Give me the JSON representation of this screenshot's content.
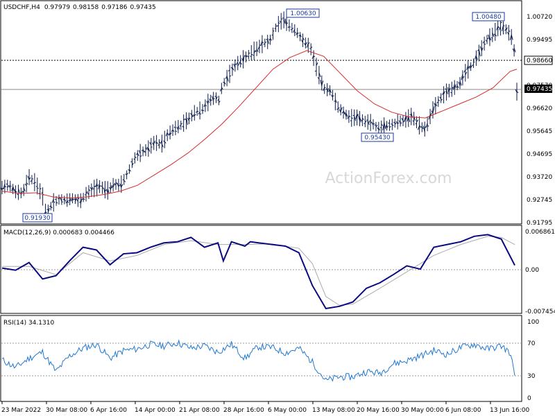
{
  "chart_data": [
    {
      "type": "line",
      "panel": "price",
      "title": "USDCHF,H4",
      "ohlc_header": {
        "open": "0.97979",
        "high": "0.98158",
        "low": "0.97186",
        "close": "0.97435"
      },
      "watermark": "ActionForex.com",
      "ylim": [
        0.91795,
        1.0072
      ],
      "y_ticks": [
        "1.00720",
        "0.99495",
        "0.98560",
        "0.97570",
        "0.96620",
        "0.95645",
        "0.94695",
        "0.93720",
        "0.92745",
        "0.91795"
      ],
      "x_ticks": [
        "23 Mar 2022",
        "30 Mar 08:00",
        "6 Apr 16:00",
        "14 Apr 00:00",
        "21 Apr 08:00",
        "28 Apr 16:00",
        "6 May 00:00",
        "13 May 08:00",
        "20 May 16:00",
        "30 May 00:00",
        "6 Jun 08:00",
        "13 Jun 16:00"
      ],
      "series": [
        {
          "name": "price",
          "color": "#0a1a4a",
          "points": [
            [
              0,
              0.933
            ],
            [
              2,
              0.9342
            ],
            [
              4,
              0.9312
            ],
            [
              6,
              0.9306
            ],
            [
              8,
              0.9375
            ],
            [
              10,
              0.9348
            ],
            [
              12,
              0.9292
            ],
            [
              13,
              0.9215
            ],
            [
              15,
              0.9265
            ],
            [
              17,
              0.928
            ],
            [
              19,
              0.9275
            ],
            [
              21,
              0.9285
            ],
            [
              23,
              0.927
            ],
            [
              25,
              0.9305
            ],
            [
              27,
              0.9325
            ],
            [
              29,
              0.9335
            ],
            [
              31,
              0.9315
            ],
            [
              33,
              0.9345
            ],
            [
              35,
              0.934
            ],
            [
              37,
              0.939
            ],
            [
              39,
              0.9455
            ],
            [
              41,
              0.9482
            ],
            [
              43,
              0.9495
            ],
            [
              45,
              0.9525
            ],
            [
              47,
              0.9515
            ],
            [
              49,
              0.956
            ],
            [
              51,
              0.9585
            ],
            [
              53,
              0.96
            ],
            [
              55,
              0.9625
            ],
            [
              57,
              0.9655
            ],
            [
              59,
              0.9665
            ],
            [
              61,
              0.97
            ],
            [
              63,
              0.972
            ],
            [
              64,
              0.9705
            ],
            [
              65,
              0.977
            ],
            [
              67,
              0.9815
            ],
            [
              69,
              0.986
            ],
            [
              71,
              0.988
            ],
            [
              73,
              0.9905
            ],
            [
              75,
              0.9925
            ],
            [
              77,
              0.995
            ],
            [
              79,
              0.996
            ],
            [
              81,
              1.0025
            ],
            [
              83,
              1.0055
            ],
            [
              85,
              1.0025
            ],
            [
              87,
              1.0
            ],
            [
              89,
              0.996
            ],
            [
              91,
              0.9935
            ],
            [
              93,
              0.984
            ],
            [
              95,
              0.9755
            ],
            [
              97,
              0.9748
            ],
            [
              99,
              0.968
            ],
            [
              101,
              0.965
            ],
            [
              103,
              0.963
            ],
            [
              105,
              0.9632
            ],
            [
              107,
              0.9615
            ],
            [
              109,
              0.961
            ],
            [
              111,
              0.9585
            ],
            [
              113,
              0.9595
            ],
            [
              115,
              0.96
            ],
            [
              117,
              0.9615
            ],
            [
              119,
              0.962
            ],
            [
              121,
              0.9638
            ],
            [
              123,
              0.96
            ],
            [
              125,
              0.958
            ],
            [
              127,
              0.966
            ],
            [
              129,
              0.9705
            ],
            [
              131,
              0.974
            ],
            [
              133,
              0.9755
            ],
            [
              135,
              0.9775
            ],
            [
              137,
              0.983
            ],
            [
              139,
              0.986
            ],
            [
              141,
              0.9915
            ],
            [
              143,
              0.9965
            ],
            [
              145,
              0.999
            ],
            [
              147,
              1.0025
            ],
            [
              149,
              1.001
            ],
            [
              151,
              0.9965
            ],
            [
              152,
              0.9743
            ]
          ]
        },
        {
          "name": "moving average",
          "color": "#d62b2b",
          "points": [
            [
              0,
              0.9315
            ],
            [
              5,
              0.9305
            ],
            [
              10,
              0.9308
            ],
            [
              15,
              0.929
            ],
            [
              20,
              0.9285
            ],
            [
              25,
              0.929
            ],
            [
              30,
              0.93
            ],
            [
              35,
              0.9315
            ],
            [
              40,
              0.934
            ],
            [
              45,
              0.9385
            ],
            [
              50,
              0.943
            ],
            [
              55,
              0.948
            ],
            [
              60,
              0.954
            ],
            [
              65,
              0.9605
            ],
            [
              70,
              0.968
            ],
            [
              75,
              0.976
            ],
            [
              80,
              0.984
            ],
            [
              85,
              0.989
            ],
            [
              90,
              0.992
            ],
            [
              95,
              0.9895
            ],
            [
              100,
              0.982
            ],
            [
              105,
              0.9745
            ],
            [
              110,
              0.969
            ],
            [
              115,
              0.9655
            ],
            [
              120,
              0.9635
            ],
            [
              125,
              0.963
            ],
            [
              130,
              0.966
            ],
            [
              135,
              0.969
            ],
            [
              140,
              0.972
            ],
            [
              145,
              0.976
            ],
            [
              150,
              0.983
            ],
            [
              152,
              0.984
            ]
          ]
        }
      ],
      "annotations": [
        "0.91930",
        "1.00630",
        "0.95430",
        "1.00480"
      ],
      "price_tags": [
        {
          "label": "0.98660",
          "value": 0.9866,
          "style": "dashed"
        },
        {
          "label": "0.97435",
          "value": 0.97435,
          "style": "solid"
        }
      ]
    },
    {
      "type": "line",
      "panel": "macd",
      "title": "MACD(12,26,9) 0.000683 0.004466",
      "ylim": [
        -0.007454,
        0.006861
      ],
      "y_ticks": [
        "0.006861",
        "0.00",
        "-0.007454"
      ],
      "series": [
        {
          "name": "MACD",
          "color": "#0a0a80",
          "points": [
            [
              0,
              0.0002
            ],
            [
              5,
              -0.0002
            ],
            [
              10,
              0.0012
            ],
            [
              15,
              -0.0018
            ],
            [
              20,
              -0.0012
            ],
            [
              25,
              0.0015
            ],
            [
              30,
              0.004
            ],
            [
              35,
              0.0035
            ],
            [
              40,
              0.0008
            ],
            [
              45,
              0.0028
            ],
            [
              50,
              0.003
            ],
            [
              55,
              0.004
            ],
            [
              60,
              0.0048
            ],
            [
              65,
              0.005
            ],
            [
              70,
              0.0058
            ],
            [
              75,
              0.004
            ],
            [
              80,
              0.0048
            ],
            [
              82,
              0.0015
            ],
            [
              85,
              0.005
            ],
            [
              90,
              0.0042
            ],
            [
              92,
              0.005
            ],
            [
              95,
              0.0048
            ],
            [
              100,
              0.0045
            ],
            [
              105,
              0.0042
            ],
            [
              110,
              0.003
            ],
            [
              115,
              -0.003
            ],
            [
              120,
              -0.0072
            ],
            [
              125,
              -0.0068
            ],
            [
              130,
              -0.006
            ],
            [
              135,
              -0.0035
            ],
            [
              140,
              -0.0025
            ],
            [
              145,
              -0.001
            ],
            [
              150,
              0.0006
            ],
            [
              155,
              0.0
            ],
            [
              160,
              0.004
            ],
            [
              165,
              0.0045
            ],
            [
              170,
              0.005
            ],
            [
              175,
              0.006
            ],
            [
              180,
              0.0063
            ],
            [
              185,
              0.0055
            ],
            [
              190,
              0.0007
            ]
          ]
        },
        {
          "name": "signal",
          "color": "#aaaaaa",
          "points": [
            [
              0,
              0.0005
            ],
            [
              10,
              0.0005
            ],
            [
              20,
              -0.001
            ],
            [
              30,
              0.003
            ],
            [
              40,
              0.0015
            ],
            [
              50,
              0.0025
            ],
            [
              60,
              0.0045
            ],
            [
              70,
              0.0052
            ],
            [
              80,
              0.0045
            ],
            [
              90,
              0.0045
            ],
            [
              100,
              0.0046
            ],
            [
              110,
              0.0038
            ],
            [
              115,
              0.001
            ],
            [
              120,
              -0.005
            ],
            [
              125,
              -0.0066
            ],
            [
              130,
              -0.0064
            ],
            [
              140,
              -0.0035
            ],
            [
              150,
              -0.0005
            ],
            [
              160,
              0.0025
            ],
            [
              170,
              0.0045
            ],
            [
              180,
              0.006
            ],
            [
              185,
              0.0058
            ],
            [
              190,
              0.0045
            ]
          ]
        }
      ]
    },
    {
      "type": "line",
      "panel": "rsi",
      "title": "RSI(14) 34.1310",
      "ylim": [
        0,
        100
      ],
      "y_ticks": [
        "100",
        "70",
        "30",
        "0"
      ],
      "levels": [
        70,
        30
      ],
      "series": [
        {
          "name": "RSI",
          "color": "#1f78d2",
          "points": [
            [
              0,
              50
            ],
            [
              5,
              40
            ],
            [
              10,
              52
            ],
            [
              15,
              60
            ],
            [
              20,
              35
            ],
            [
              25,
              55
            ],
            [
              30,
              65
            ],
            [
              35,
              70
            ],
            [
              40,
              52
            ],
            [
              45,
              62
            ],
            [
              50,
              64
            ],
            [
              55,
              70
            ],
            [
              60,
              68
            ],
            [
              65,
              72
            ],
            [
              70,
              65
            ],
            [
              75,
              68
            ],
            [
              80,
              60
            ],
            [
              85,
              70
            ],
            [
              90,
              52
            ],
            [
              95,
              67
            ],
            [
              100,
              66
            ],
            [
              105,
              59
            ],
            [
              110,
              65
            ],
            [
              115,
              47
            ],
            [
              120,
              23
            ],
            [
              125,
              28
            ],
            [
              130,
              28
            ],
            [
              135,
              35
            ],
            [
              140,
              33
            ],
            [
              145,
              45
            ],
            [
              150,
              49
            ],
            [
              155,
              55
            ],
            [
              160,
              62
            ],
            [
              165,
              57
            ],
            [
              170,
              66
            ],
            [
              175,
              70
            ],
            [
              180,
              64
            ],
            [
              185,
              68
            ],
            [
              188,
              60
            ],
            [
              190,
              34
            ]
          ]
        }
      ]
    }
  ],
  "colors": {
    "price_bars": "#0a1a4a",
    "ma": "#d62b2b",
    "macd": "#0a0a80",
    "signal": "#aaaaaa",
    "rsi": "#1f78d2",
    "tag_dark": "#000000"
  }
}
